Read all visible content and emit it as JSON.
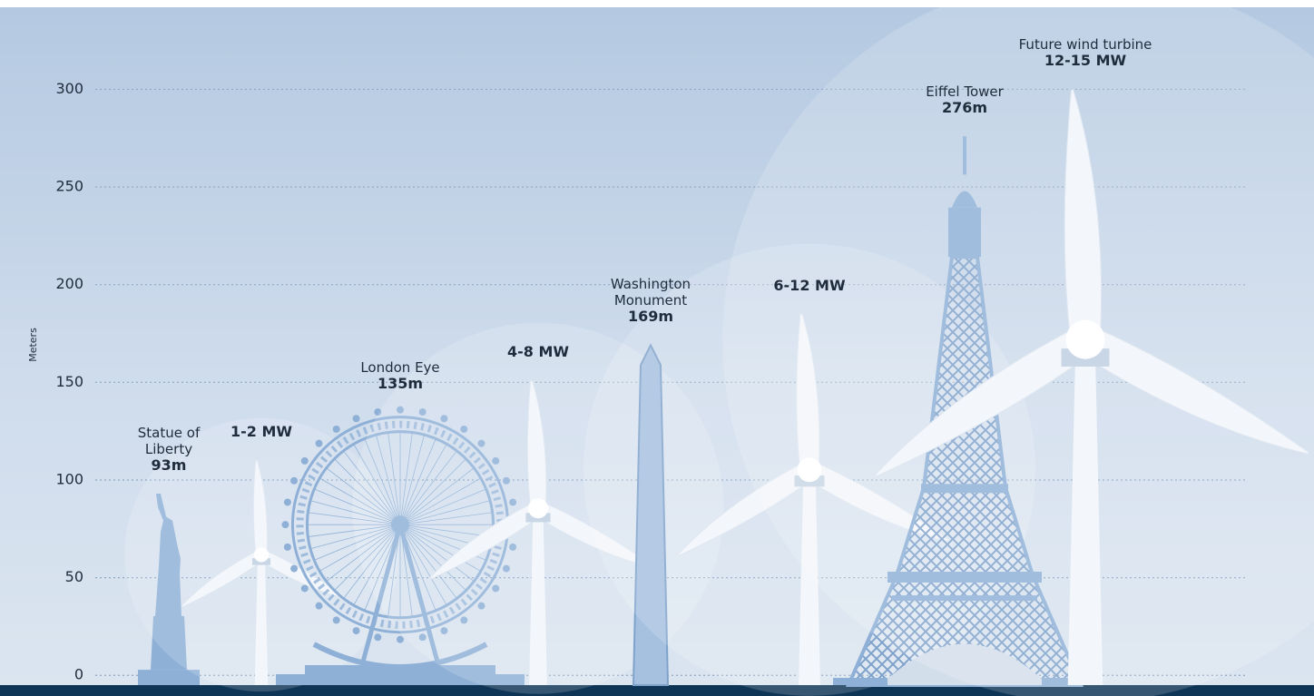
{
  "chart_data": {
    "type": "height-comparison",
    "y_label": "Meters",
    "ylim": [
      -5,
      342
    ],
    "yticks": [
      0,
      50,
      100,
      150,
      200,
      250,
      300
    ],
    "grid": true,
    "categories": [
      "Statue of Liberty",
      null,
      "London Eye",
      null,
      "Washington Monument",
      null,
      "Eiffel Tower",
      "Future wind turbine"
    ],
    "values": [
      93,
      110,
      135,
      151,
      169,
      185,
      276,
      300
    ],
    "value_labels": [
      "93m",
      null,
      "135m",
      null,
      "169m",
      null,
      "276m",
      null
    ],
    "capacity_labels": [
      null,
      "1-2 MW",
      null,
      "4-8 MW",
      null,
      "6-12 MW",
      null,
      "12-15  MW"
    ],
    "shapes": [
      "statue",
      "turbine",
      "wheel",
      "turbine",
      "obelisk",
      "turbine",
      "tower",
      "turbine"
    ],
    "landmark_color": "#8fb0d6",
    "turbine_color": "#f3f6fa"
  }
}
